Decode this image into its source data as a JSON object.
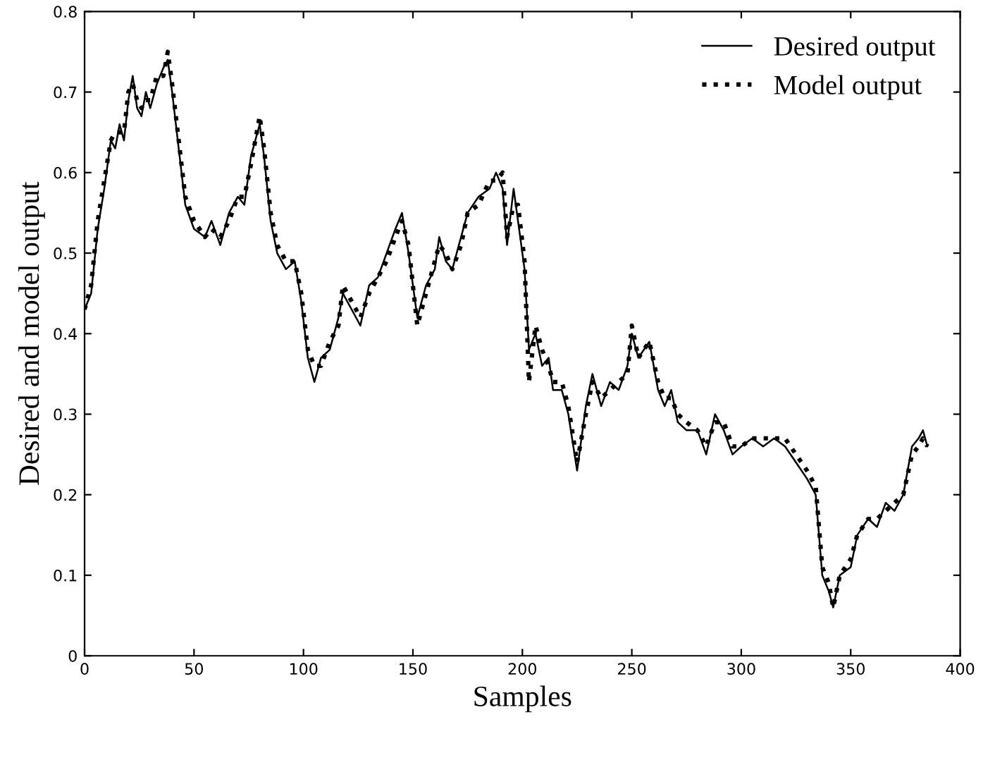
{
  "chart_data": {
    "type": "line",
    "xlabel": "Samples",
    "ylabel": "Desired and model output",
    "x": [
      0,
      3,
      6,
      9,
      12,
      14,
      16,
      18,
      20,
      22,
      24,
      26,
      28,
      30,
      33,
      36,
      38,
      40,
      43,
      46,
      50,
      55,
      58,
      62,
      66,
      70,
      73,
      76,
      80,
      82,
      85,
      88,
      92,
      96,
      99,
      102,
      105,
      108,
      112,
      116,
      118,
      122,
      126,
      130,
      134,
      138,
      142,
      145,
      148,
      152,
      156,
      160,
      162,
      165,
      168,
      172,
      175,
      180,
      185,
      188,
      191,
      193,
      196,
      198,
      201,
      203,
      206,
      209,
      212,
      214,
      218,
      221,
      225,
      229,
      232,
      236,
      240,
      244,
      248,
      250,
      253,
      258,
      262,
      265,
      268,
      271,
      275,
      280,
      284,
      288,
      292,
      296,
      300,
      305,
      310,
      315,
      320,
      325,
      330,
      334,
      337,
      340,
      342,
      345,
      350,
      353,
      358,
      362,
      366,
      370,
      374,
      378,
      381,
      383,
      385
    ],
    "xlim": [
      0,
      400
    ],
    "xticks": [
      0,
      50,
      100,
      150,
      200,
      250,
      300,
      350,
      400
    ],
    "ylim": [
      0,
      0.8
    ],
    "yticks": [
      0,
      0.1,
      0.2,
      0.3,
      0.4,
      0.5,
      0.6,
      0.7,
      0.8
    ],
    "grid": false,
    "legend": "top right",
    "series": [
      {
        "name": "Desired output",
        "color": "#000000",
        "line_style": "solid",
        "values": [
          0.43,
          0.45,
          0.53,
          0.58,
          0.64,
          0.63,
          0.66,
          0.64,
          0.69,
          0.72,
          0.68,
          0.67,
          0.7,
          0.68,
          0.71,
          0.73,
          0.74,
          0.7,
          0.63,
          0.56,
          0.53,
          0.52,
          0.54,
          0.51,
          0.55,
          0.57,
          0.56,
          0.62,
          0.66,
          0.62,
          0.54,
          0.5,
          0.48,
          0.49,
          0.44,
          0.37,
          0.34,
          0.37,
          0.38,
          0.42,
          0.45,
          0.43,
          0.41,
          0.46,
          0.47,
          0.5,
          0.53,
          0.55,
          0.5,
          0.42,
          0.46,
          0.48,
          0.52,
          0.49,
          0.48,
          0.52,
          0.55,
          0.57,
          0.58,
          0.6,
          0.58,
          0.51,
          0.58,
          0.54,
          0.48,
          0.38,
          0.4,
          0.36,
          0.37,
          0.33,
          0.33,
          0.3,
          0.23,
          0.31,
          0.35,
          0.31,
          0.34,
          0.33,
          0.36,
          0.4,
          0.37,
          0.39,
          0.33,
          0.31,
          0.33,
          0.29,
          0.28,
          0.28,
          0.25,
          0.3,
          0.28,
          0.25,
          0.26,
          0.27,
          0.26,
          0.27,
          0.26,
          0.24,
          0.22,
          0.2,
          0.1,
          0.08,
          0.06,
          0.1,
          0.11,
          0.15,
          0.17,
          0.16,
          0.19,
          0.18,
          0.2,
          0.26,
          0.27,
          0.28,
          0.26
        ]
      },
      {
        "name": "Model output",
        "color": "#000000",
        "line_style": "dotted",
        "values": [
          0.43,
          0.46,
          0.54,
          0.59,
          0.64,
          0.65,
          0.65,
          0.65,
          0.7,
          0.71,
          0.69,
          0.68,
          0.69,
          0.69,
          0.72,
          0.72,
          0.75,
          0.71,
          0.64,
          0.57,
          0.54,
          0.52,
          0.53,
          0.52,
          0.54,
          0.57,
          0.57,
          0.61,
          0.67,
          0.63,
          0.55,
          0.51,
          0.49,
          0.49,
          0.45,
          0.38,
          0.36,
          0.36,
          0.39,
          0.41,
          0.46,
          0.44,
          0.42,
          0.45,
          0.47,
          0.49,
          0.52,
          0.54,
          0.51,
          0.41,
          0.45,
          0.49,
          0.51,
          0.5,
          0.48,
          0.51,
          0.55,
          0.56,
          0.59,
          0.59,
          0.6,
          0.52,
          0.56,
          0.56,
          0.49,
          0.34,
          0.41,
          0.38,
          0.36,
          0.34,
          0.34,
          0.31,
          0.24,
          0.3,
          0.34,
          0.32,
          0.33,
          0.34,
          0.35,
          0.41,
          0.37,
          0.39,
          0.34,
          0.32,
          0.32,
          0.3,
          0.29,
          0.28,
          0.26,
          0.29,
          0.29,
          0.26,
          0.26,
          0.27,
          0.27,
          0.27,
          0.27,
          0.25,
          0.23,
          0.21,
          0.11,
          0.09,
          0.06,
          0.1,
          0.12,
          0.15,
          0.17,
          0.17,
          0.18,
          0.19,
          0.2,
          0.25,
          0.26,
          0.27,
          0.26
        ]
      }
    ]
  }
}
